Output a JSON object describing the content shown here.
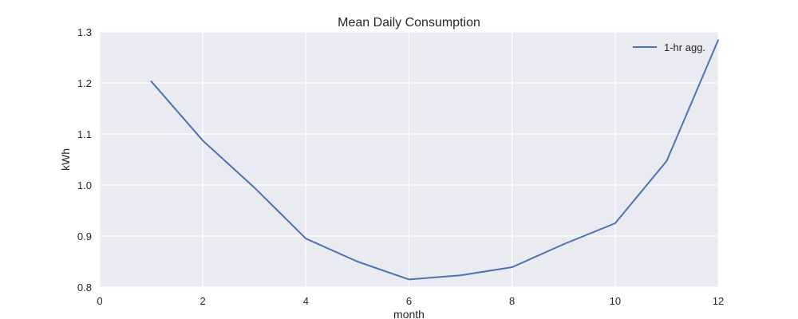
{
  "chart_data": {
    "type": "line",
    "title": "Mean Daily Consumption",
    "xlabel": "month",
    "ylabel": "kWh",
    "xlim": [
      0,
      12
    ],
    "ylim": [
      0.8,
      1.3
    ],
    "xticks": [
      "0",
      "2",
      "4",
      "6",
      "8",
      "10",
      "12"
    ],
    "yticks": [
      "0.8",
      "0.9",
      "1.0",
      "1.1",
      "1.2",
      "1.3"
    ],
    "grid": true,
    "legend_position": "top-right",
    "background_color": "#eaeaf2",
    "grid_color": "#ffffff",
    "series": [
      {
        "name": "1-hr agg.",
        "color": "#4c72b0",
        "x": [
          1,
          2,
          3,
          4,
          5,
          6,
          7,
          8,
          9,
          10,
          11,
          12
        ],
        "y": [
          1.203,
          1.087,
          0.995,
          0.895,
          0.85,
          0.815,
          0.823,
          0.839,
          0.884,
          0.925,
          1.047,
          1.284
        ]
      }
    ]
  }
}
